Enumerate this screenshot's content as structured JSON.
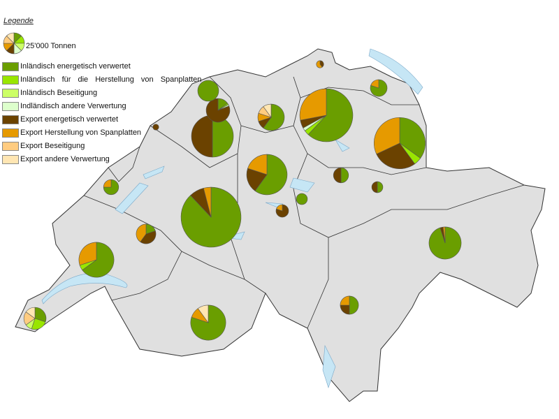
{
  "legend": {
    "title": "Legende",
    "scale_label": "25'000 Tonnen",
    "scale_tonnes": 25000,
    "categories": [
      {
        "label": "Inländisch energetisch verwertet",
        "color": "#6a9e00"
      },
      {
        "label": "Inländisch für die Herstellung von Spanplatten",
        "color": "#99e600"
      },
      {
        "label": "Inländisch Beseitigung",
        "color": "#ccff66"
      },
      {
        "label": "Indländisch andere Verwertung",
        "color": "#ddffcc"
      },
      {
        "label": "Export energetisch verwertet",
        "color": "#6b4200"
      },
      {
        "label": "Export Herstellung von Spanplatten",
        "color": "#e69a00"
      },
      {
        "label": "Export Beseitigung",
        "color": "#ffcc80"
      },
      {
        "label": "Export andere Verwertung",
        "color": "#ffe6b3"
      }
    ]
  },
  "colors": {
    "land": "#e0e0e0",
    "border": "#333333",
    "lake": "#c6e6f5"
  },
  "pies": [
    {
      "tonnes": 160000,
      "shares": [
        0.62,
        0.03,
        0,
        0.02,
        0.05,
        0.28,
        0,
        0
      ]
    },
    {
      "tonnes": 150000,
      "shares": [
        0.35,
        0.05,
        0,
        0,
        0.28,
        0.32,
        0,
        0
      ]
    },
    {
      "tonnes": 205000,
      "shares": [
        0.88,
        0,
        0,
        0,
        0.08,
        0.04,
        0,
        0
      ]
    },
    {
      "tonnes": 100000,
      "shares": [
        0.5,
        0,
        0,
        0,
        0.5,
        0,
        0,
        0
      ]
    },
    {
      "tonnes": 93000,
      "shares": [
        0.6,
        0,
        0,
        0,
        0.2,
        0.2,
        0,
        0
      ]
    },
    {
      "tonnes": 32000,
      "shares": [
        0.15,
        0.02,
        0,
        0.02,
        0.81,
        0,
        0,
        0
      ]
    },
    {
      "tonnes": 25000,
      "shares": [
        1,
        0,
        0,
        0,
        0,
        0,
        0,
        0
      ]
    },
    {
      "tonnes": 40000,
      "shares": [
        0.6,
        0,
        0,
        0,
        0.1,
        0.1,
        0.1,
        0.1
      ]
    },
    {
      "tonnes": 70000,
      "shares": [
        0.65,
        0.05,
        0,
        0,
        0,
        0.3,
        0,
        0
      ]
    },
    {
      "tonnes": 70000,
      "shares": [
        0.8,
        0,
        0,
        0,
        0,
        0.1,
        0,
        0.1
      ]
    },
    {
      "tonnes": 59000,
      "shares": [
        0.95,
        0,
        0,
        0,
        0.03,
        0.02,
        0,
        0
      ]
    },
    {
      "tonnes": 19000,
      "shares": [
        0.5,
        0,
        0,
        0,
        0.25,
        0.25,
        0,
        0
      ]
    },
    {
      "tonnes": 22000,
      "shares": [
        0.2,
        0,
        0,
        0,
        0.4,
        0.4,
        0,
        0
      ]
    },
    {
      "tonnes": 28000,
      "shares": [
        0.3,
        0.25,
        0.1,
        0,
        0,
        0,
        0.2,
        0.15
      ]
    },
    {
      "tonnes": 13000,
      "shares": [
        0.75,
        0,
        0,
        0,
        0,
        0.25,
        0,
        0
      ]
    },
    {
      "tonnes": 13000,
      "shares": [
        0.5,
        0,
        0,
        0,
        0.5,
        0,
        0,
        0
      ]
    },
    {
      "tonnes": 16000,
      "shares": [
        0.8,
        0,
        0,
        0,
        0,
        0.2,
        0,
        0
      ]
    },
    {
      "tonnes": 7000,
      "shares": [
        0.5,
        0,
        0,
        0,
        0.5,
        0,
        0,
        0
      ]
    },
    {
      "tonnes": 3000,
      "shares": [
        0,
        0,
        0,
        0,
        0.4,
        0.6,
        0,
        0
      ]
    },
    {
      "tonnes": 2000,
      "shares": [
        0,
        0,
        0,
        0,
        1,
        0,
        0,
        0
      ]
    },
    {
      "tonnes": 9000,
      "shares": [
        0,
        0,
        0,
        0,
        0.8,
        0.2,
        0,
        0
      ]
    },
    {
      "tonnes": 7000,
      "shares": [
        1,
        0,
        0,
        0,
        0,
        0,
        0,
        0
      ]
    }
  ]
}
